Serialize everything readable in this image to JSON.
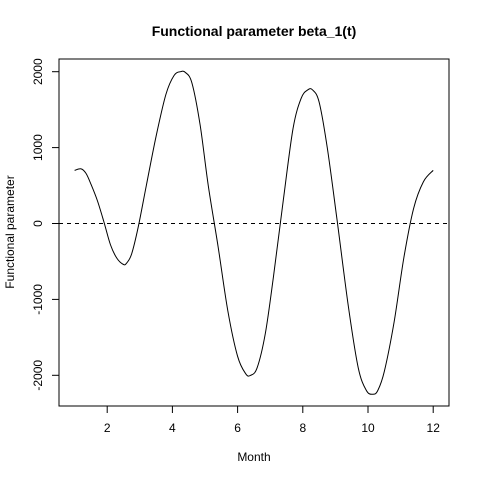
{
  "chart_data": {
    "type": "line",
    "title": "Functional parameter beta_1(t)",
    "xlabel": "Month",
    "ylabel": "Functional parameter",
    "xlim": [
      1,
      12
    ],
    "ylim": [
      -2200,
      2000
    ],
    "x_ticks": [
      2,
      4,
      6,
      8,
      10,
      12
    ],
    "y_ticks": [
      -2000,
      -1000,
      0,
      1000,
      2000
    ],
    "grid": false,
    "reference_line": {
      "y": 0,
      "style": "dashed"
    },
    "series": [
      {
        "color": "#000000",
        "x": [
          1.0,
          1.2,
          1.35,
          1.5,
          1.7,
          1.9,
          2.1,
          2.3,
          2.5,
          2.6,
          2.75,
          2.95,
          3.2,
          3.5,
          3.8,
          4.05,
          4.25,
          4.4,
          4.6,
          4.85,
          5.1,
          5.4,
          5.7,
          6.0,
          6.25,
          6.4,
          6.6,
          6.85,
          7.1,
          7.4,
          7.7,
          7.95,
          8.15,
          8.3,
          8.5,
          8.75,
          9.05,
          9.4,
          9.7,
          9.95,
          10.15,
          10.3,
          10.5,
          10.8,
          11.1,
          11.4,
          11.7,
          12.0
        ],
        "y": [
          700,
          720,
          660,
          520,
          300,
          20,
          -280,
          -460,
          -540,
          -520,
          -400,
          -50,
          500,
          1150,
          1700,
          1950,
          2000,
          1990,
          1850,
          1300,
          500,
          -300,
          -1150,
          -1750,
          -1980,
          -2000,
          -1900,
          -1450,
          -700,
          300,
          1250,
          1650,
          1760,
          1760,
          1600,
          1000,
          50,
          -1100,
          -1900,
          -2200,
          -2250,
          -2200,
          -1950,
          -1300,
          -450,
          200,
          550,
          700
        ]
      }
    ]
  }
}
